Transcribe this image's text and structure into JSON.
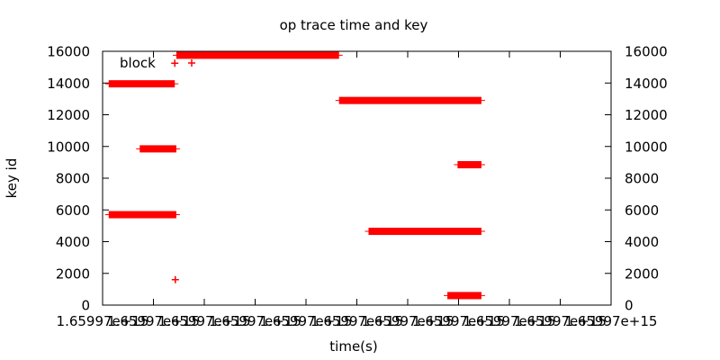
{
  "chart_data": {
    "type": "scatter",
    "title": "op trace time and key",
    "xlabel": "time(s)",
    "ylabel": "key id",
    "x_tick_labels": [
      "1.65997e+15",
      "1.65997e+15",
      "1.65997e+15",
      "1.65997e+15",
      "1.65997e+15",
      "1.65997e+15",
      "1.65997e+15",
      "1.65997e+15",
      "1.65997e+15",
      "1.65997e+15",
      "1.65997e+15"
    ],
    "ylim": [
      0,
      16000
    ],
    "y_ticks": [
      0,
      2000,
      4000,
      6000,
      8000,
      10000,
      12000,
      14000,
      16000
    ],
    "y2_ticks": [
      0,
      2000,
      4000,
      6000,
      8000,
      10000,
      12000,
      14000,
      16000
    ],
    "x_domain": [
      0,
      10
    ],
    "legend": {
      "position": "top-left",
      "entries": [
        "block"
      ]
    },
    "series": [
      {
        "name": "block",
        "color": "#ff0000",
        "marker": "plus",
        "segments": [
          {
            "y": 13950,
            "x_start": 0.12,
            "x_end": 1.42
          },
          {
            "y": 9850,
            "x_start": 0.73,
            "x_end": 1.45
          },
          {
            "y": 5700,
            "x_start": 0.12,
            "x_end": 1.45
          },
          {
            "y": 15750,
            "x_start": 1.45,
            "x_end": 4.65
          },
          {
            "y": 12900,
            "x_start": 4.65,
            "x_end": 7.45
          },
          {
            "y": 8850,
            "x_start": 6.98,
            "x_end": 7.45
          },
          {
            "y": 4650,
            "x_start": 5.23,
            "x_end": 7.45
          },
          {
            "y": 600,
            "x_start": 6.78,
            "x_end": 7.45
          }
        ],
        "points": [
          {
            "x": 1.42,
            "y": 15250
          },
          {
            "x": 1.43,
            "y": 1600
          }
        ]
      }
    ]
  }
}
